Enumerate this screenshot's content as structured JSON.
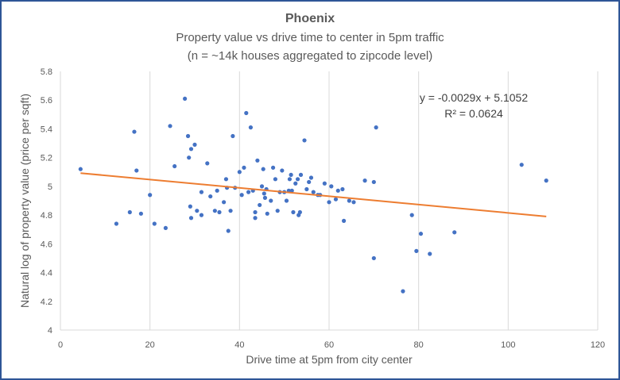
{
  "chart_data": {
    "type": "scatter",
    "title": "Phoenix",
    "subtitle_lines": [
      "Property value vs drive time to center in 5pm traffic",
      "(n = ~14k houses aggregated to zipcode level)"
    ],
    "xlabel": "Drive time at 5pm from city center",
    "ylabel": "Natural log of property value (price per sqft)",
    "xlim": [
      0,
      120
    ],
    "ylim": [
      4,
      5.8
    ],
    "xticks": [
      "0",
      "20",
      "40",
      "60",
      "80",
      "100",
      "120"
    ],
    "yticks": [
      "4",
      "4.2",
      "4.4",
      "4.6",
      "4.8",
      "5",
      "5.2",
      "5.4",
      "5.6",
      "5.8"
    ],
    "grid": "vertical",
    "point_color": "#4472c4",
    "trend_color": "#ed7d31",
    "trendline": {
      "slope": -0.0029,
      "intercept": 5.1052,
      "x_range": [
        4.5,
        108.5
      ],
      "equation": "y = -0.0029x + 5.1052",
      "r_squared": "R² = 0.0624"
    },
    "points": [
      [
        4.5,
        5.12
      ],
      [
        12.5,
        4.74
      ],
      [
        15.5,
        4.82
      ],
      [
        16.5,
        5.38
      ],
      [
        17,
        5.11
      ],
      [
        18,
        4.81
      ],
      [
        20,
        4.94
      ],
      [
        21,
        4.74
      ],
      [
        23.5,
        4.71
      ],
      [
        24.5,
        5.42
      ],
      [
        25.5,
        5.14
      ],
      [
        27.8,
        5.61
      ],
      [
        28.5,
        5.35
      ],
      [
        28.7,
        5.2
      ],
      [
        29,
        4.86
      ],
      [
        29.2,
        5.26
      ],
      [
        29.2,
        4.78
      ],
      [
        30,
        5.29
      ],
      [
        30.5,
        4.83
      ],
      [
        31.5,
        4.96
      ],
      [
        31.5,
        4.8
      ],
      [
        32.8,
        5.16
      ],
      [
        33.5,
        4.93
      ],
      [
        34.5,
        4.83
      ],
      [
        35,
        4.97
      ],
      [
        35.5,
        4.82
      ],
      [
        36.5,
        4.89
      ],
      [
        37,
        5.05
      ],
      [
        37.2,
        4.99
      ],
      [
        37.5,
        4.69
      ],
      [
        38,
        4.83
      ],
      [
        38.5,
        5.35
      ],
      [
        39,
        4.99
      ],
      [
        40,
        5.1
      ],
      [
        40.5,
        4.94
      ],
      [
        41,
        5.13
      ],
      [
        41.5,
        5.51
      ],
      [
        42,
        4.96
      ],
      [
        42.5,
        5.41
      ],
      [
        43,
        4.97
      ],
      [
        43.5,
        4.82
      ],
      [
        43.5,
        4.78
      ],
      [
        44,
        5.18
      ],
      [
        44.5,
        4.87
      ],
      [
        45,
        5
      ],
      [
        45.3,
        5.12
      ],
      [
        45.5,
        4.95
      ],
      [
        45.7,
        4.92
      ],
      [
        46,
        4.98
      ],
      [
        46.2,
        4.81
      ],
      [
        47,
        4.9
      ],
      [
        47.5,
        5.13
      ],
      [
        48,
        5.05
      ],
      [
        48.5,
        4.83
      ],
      [
        49,
        4.96
      ],
      [
        49.5,
        5.11
      ],
      [
        50,
        4.96
      ],
      [
        50.5,
        4.9
      ],
      [
        51,
        4.97
      ],
      [
        51.2,
        5.05
      ],
      [
        51.5,
        5.08
      ],
      [
        51.7,
        4.97
      ],
      [
        52,
        4.82
      ],
      [
        52.5,
        5.02
      ],
      [
        53,
        5.05
      ],
      [
        53.2,
        4.8
      ],
      [
        53.5,
        4.82
      ],
      [
        53.7,
        5.08
      ],
      [
        54.5,
        5.32
      ],
      [
        55,
        4.98
      ],
      [
        55.5,
        5.03
      ],
      [
        56,
        5.06
      ],
      [
        56.5,
        4.96
      ],
      [
        57.5,
        4.94
      ],
      [
        58,
        4.94
      ],
      [
        59,
        5.02
      ],
      [
        60,
        4.89
      ],
      [
        60.5,
        5
      ],
      [
        61.5,
        4.91
      ],
      [
        62,
        4.97
      ],
      [
        63,
        4.98
      ],
      [
        63.3,
        4.76
      ],
      [
        64.5,
        4.9
      ],
      [
        65.5,
        4.89
      ],
      [
        68,
        5.04
      ],
      [
        70,
        4.5
      ],
      [
        70,
        5.03
      ],
      [
        70.5,
        5.41
      ],
      [
        76.5,
        4.27
      ],
      [
        78.5,
        4.8
      ],
      [
        79.5,
        4.55
      ],
      [
        80.5,
        4.67
      ],
      [
        82.5,
        4.53
      ],
      [
        88,
        4.68
      ],
      [
        103,
        5.15
      ],
      [
        108.5,
        5.04
      ]
    ]
  }
}
